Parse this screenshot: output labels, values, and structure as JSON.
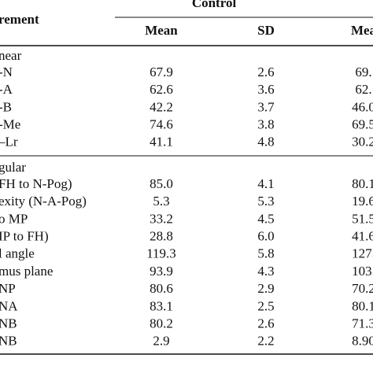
{
  "table": {
    "header": {
      "measurement": "rement",
      "group": "Control",
      "columns": [
        "Mean",
        "SD",
        "Mea"
      ]
    },
    "sections": [
      {
        "title": "near",
        "rows": [
          [
            "-N",
            "67.9",
            "2.6",
            "69."
          ],
          [
            "-A",
            "62.6",
            "3.6",
            "62."
          ],
          [
            "-B",
            "42.2",
            "3.7",
            "46.0"
          ],
          [
            "-Me",
            "74.6",
            "3.8",
            "69.5"
          ],
          [
            "–Lr",
            "41.1",
            "4.8",
            "30.2"
          ]
        ]
      },
      {
        "title": "gular",
        "rows": [
          [
            "FH to N-Pog)",
            "85.0",
            "4.1",
            "80.1"
          ],
          [
            "exity (N-A-Pog)",
            "5.3",
            "5.3",
            "19.6"
          ],
          [
            "o MP",
            "33.2",
            "4.5",
            "51.5"
          ],
          [
            "IP to FH)",
            "28.8",
            "6.0",
            "41.6"
          ],
          [
            "l angle",
            "119.3",
            "5.8",
            "127."
          ],
          [
            "mus plane",
            "93.9",
            "4.3",
            "103."
          ],
          [
            "NP",
            "80.6",
            "2.9",
            "70.2"
          ],
          [
            "NA",
            "83.1",
            "2.5",
            "80.1"
          ],
          [
            "NB",
            "80.2",
            "2.6",
            "71.3"
          ],
          [
            "NB",
            "2.9",
            "2.2",
            "8.90"
          ]
        ]
      }
    ]
  }
}
